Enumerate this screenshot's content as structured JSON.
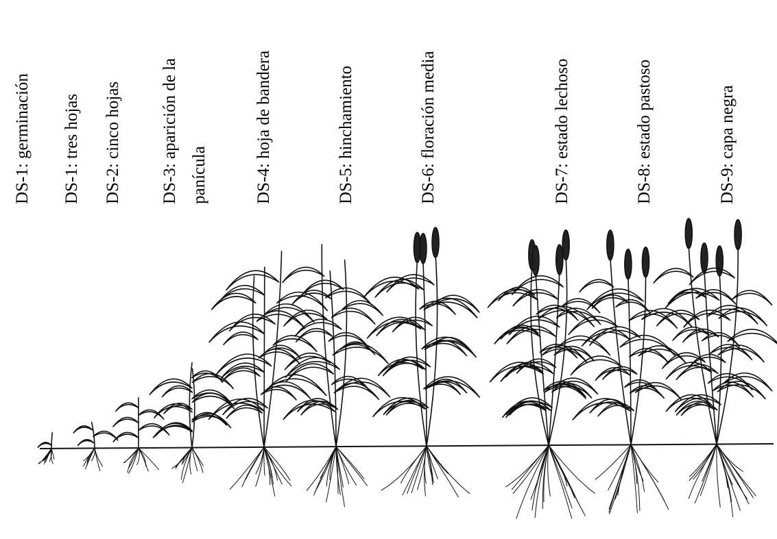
{
  "stages": [
    {
      "lines": [
        "DS-1: germinación"
      ]
    },
    {
      "lines": [
        "DS-1: tres hojas"
      ]
    },
    {
      "lines": [
        "DS-2: cinco hojas"
      ]
    },
    {
      "lines": [
        "DS-3: aparición de la",
        "panícula"
      ]
    },
    {
      "lines": [
        "DS-4: hoja de bandera"
      ]
    },
    {
      "lines": [
        "DS-5: hinchamiento"
      ]
    },
    {
      "lines": [
        "DS-6: floración media"
      ]
    },
    {
      "lines": [
        "DS-7: estado lechoso"
      ]
    },
    {
      "lines": [
        "DS-8: estado pastoso"
      ]
    },
    {
      "lines": [
        "DS-9: capa negra"
      ]
    }
  ]
}
